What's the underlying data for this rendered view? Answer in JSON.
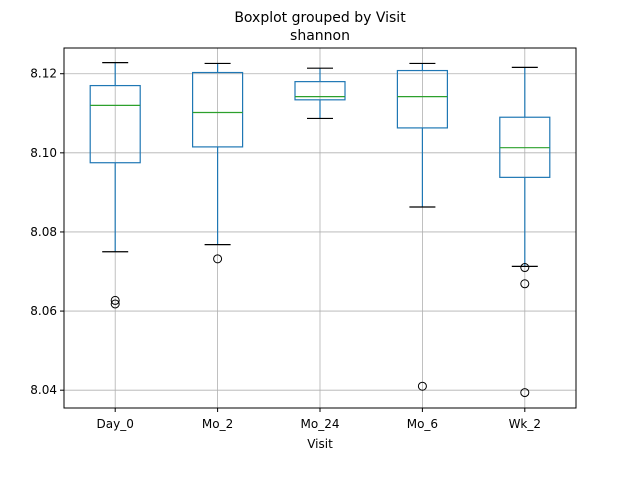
{
  "chart_data": {
    "type": "boxplot",
    "title": "Boxplot grouped by Visit",
    "subtitle": "shannon",
    "xlabel": "Visit",
    "ylabel": "",
    "ylim": [
      8.0355,
      8.1265
    ],
    "yticks": [
      8.04,
      8.06,
      8.08,
      8.1,
      8.12
    ],
    "ytick_labels": [
      "8.04",
      "8.06",
      "8.08",
      "8.10",
      "8.12"
    ],
    "grid": true,
    "colors": {
      "box": "#1f77b4",
      "median": "#2ca02c",
      "whisker_cap": "#000000",
      "grid": "#b0b0b0",
      "outlier": "#000000"
    },
    "categories": [
      "Day_0",
      "Mo_2",
      "Mo_24",
      "Mo_6",
      "Wk_2"
    ],
    "boxes": [
      {
        "name": "Day_0",
        "whisker_low": 8.075,
        "q1": 8.0975,
        "median": 8.112,
        "q3": 8.117,
        "whisker_high": 8.1228,
        "outliers": [
          8.0627,
          8.0618
        ]
      },
      {
        "name": "Mo_2",
        "whisker_low": 8.0768,
        "q1": 8.1015,
        "median": 8.1102,
        "q3": 8.1203,
        "whisker_high": 8.1226,
        "outliers": [
          8.0732
        ]
      },
      {
        "name": "Mo_24",
        "whisker_low": 8.1087,
        "q1": 8.1134,
        "median": 8.1142,
        "q3": 8.118,
        "whisker_high": 8.1214,
        "outliers": []
      },
      {
        "name": "Mo_6",
        "whisker_low": 8.0863,
        "q1": 8.1063,
        "median": 8.1142,
        "q3": 8.1208,
        "whisker_high": 8.1226,
        "outliers": [
          8.041
        ]
      },
      {
        "name": "Wk_2",
        "whisker_low": 8.0713,
        "q1": 8.0938,
        "median": 8.1013,
        "q3": 8.109,
        "whisker_high": 8.1216,
        "outliers": [
          8.071,
          8.0669,
          8.0394
        ]
      }
    ]
  }
}
